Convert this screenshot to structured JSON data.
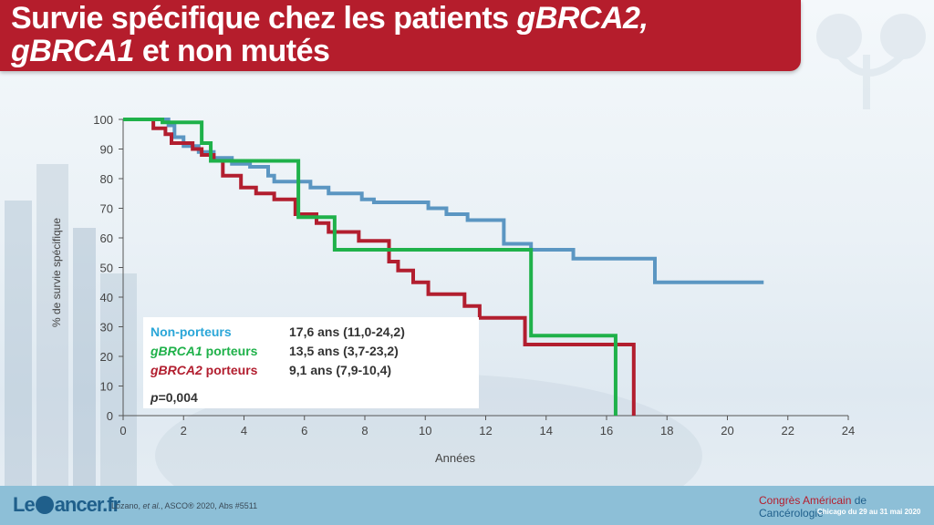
{
  "title": {
    "part1": "Survie spécifique chez les patients ",
    "part2": "gBRCA2,",
    "part3": "gBRCA1",
    "part4": " et non mutés"
  },
  "colors": {
    "brand_red": "#b51d2c",
    "non_porteurs": "#5b96c2",
    "gbrca1": "#1fb14a",
    "gbrca2": "#b21e2f"
  },
  "chart_data": {
    "type": "line",
    "xlabel": "Années",
    "ylabel": "% de survie spécifique",
    "xlim": [
      0,
      24
    ],
    "ylim": [
      0,
      100
    ],
    "xticks": [
      0,
      2,
      4,
      6,
      8,
      10,
      12,
      14,
      16,
      18,
      20,
      22,
      24
    ],
    "yticks": [
      0,
      10,
      20,
      30,
      40,
      50,
      60,
      70,
      80,
      90,
      100
    ],
    "grid": false,
    "legend_placement": "bottom-left",
    "series": [
      {
        "name": "Non-porteurs",
        "color": "#5b96c2",
        "step": true,
        "points": [
          [
            0,
            100
          ],
          [
            1.3,
            100
          ],
          [
            1.5,
            98
          ],
          [
            1.7,
            94
          ],
          [
            2,
            91
          ],
          [
            2.5,
            89
          ],
          [
            3,
            87
          ],
          [
            3.6,
            85
          ],
          [
            4.2,
            84
          ],
          [
            4.8,
            81
          ],
          [
            5.0,
            79
          ],
          [
            6.0,
            79
          ],
          [
            6.2,
            77
          ],
          [
            6.6,
            77
          ],
          [
            6.8,
            75
          ],
          [
            7.8,
            75
          ],
          [
            7.9,
            73
          ],
          [
            8.2,
            73
          ],
          [
            8.3,
            72
          ],
          [
            9.8,
            72
          ],
          [
            10.1,
            70
          ],
          [
            10.6,
            70
          ],
          [
            10.7,
            68
          ],
          [
            11.3,
            68
          ],
          [
            11.4,
            66
          ],
          [
            12.5,
            66
          ],
          [
            12.6,
            58
          ],
          [
            13.4,
            58
          ],
          [
            13.5,
            56
          ],
          [
            14.8,
            56
          ],
          [
            14.9,
            53
          ],
          [
            17.6,
            53
          ],
          [
            17.6,
            45
          ],
          [
            21.2,
            45
          ]
        ]
      },
      {
        "name": "gBRCA1 porteurs",
        "color": "#1fb14a",
        "step": true,
        "points": [
          [
            0,
            100
          ],
          [
            1.2,
            100
          ],
          [
            1.3,
            99
          ],
          [
            2.6,
            99
          ],
          [
            2.6,
            92
          ],
          [
            2.8,
            92
          ],
          [
            2.9,
            86
          ],
          [
            5.8,
            86
          ],
          [
            5.8,
            67
          ],
          [
            6.9,
            67
          ],
          [
            7.0,
            56
          ],
          [
            13.5,
            56
          ],
          [
            13.5,
            27
          ],
          [
            16.3,
            27
          ],
          [
            16.3,
            0
          ]
        ]
      },
      {
        "name": "gBRCA2 porteurs",
        "color": "#b21e2f",
        "step": true,
        "points": [
          [
            0,
            100
          ],
          [
            0.9,
            100
          ],
          [
            1.0,
            97
          ],
          [
            1.4,
            95
          ],
          [
            1.6,
            92
          ],
          [
            2.2,
            92
          ],
          [
            2.3,
            90
          ],
          [
            2.6,
            88
          ],
          [
            3.0,
            86
          ],
          [
            3.2,
            86
          ],
          [
            3.3,
            81
          ],
          [
            3.8,
            81
          ],
          [
            3.9,
            77
          ],
          [
            4.3,
            77
          ],
          [
            4.4,
            75
          ],
          [
            4.9,
            75
          ],
          [
            5.0,
            73
          ],
          [
            5.6,
            73
          ],
          [
            5.7,
            68
          ],
          [
            6.3,
            68
          ],
          [
            6.4,
            65
          ],
          [
            6.7,
            65
          ],
          [
            6.8,
            62
          ],
          [
            7.7,
            62
          ],
          [
            7.8,
            59
          ],
          [
            8.7,
            59
          ],
          [
            8.8,
            52
          ],
          [
            9.0,
            52
          ],
          [
            9.1,
            49
          ],
          [
            9.5,
            49
          ],
          [
            9.6,
            45
          ],
          [
            10.0,
            45
          ],
          [
            10.1,
            41
          ],
          [
            11.2,
            41
          ],
          [
            11.3,
            37
          ],
          [
            11.7,
            37
          ],
          [
            11.8,
            33
          ],
          [
            13.3,
            33
          ],
          [
            13.3,
            24
          ],
          [
            16.9,
            24
          ],
          [
            16.9,
            0
          ]
        ]
      }
    ]
  },
  "legend": {
    "rows": [
      {
        "name": "Non-porteurs",
        "value": "17,6 ans (11,0-24,2)",
        "color": "#2aa6d8"
      },
      {
        "name_italic": "gBRCA1",
        "name_rest": " porteurs",
        "value": "13,5 ans (3,7-23,2)",
        "color": "#1fb14a"
      },
      {
        "name_italic": "gBRCA2",
        "name_rest": " porteurs",
        "value": "9,1 ans (7,9-10,4)",
        "color": "#b21e2f"
      }
    ],
    "p_italic": "p",
    "p_rest": "=0,004"
  },
  "footer": {
    "logo_left": "Le",
    "logo_right": "ancer.fr",
    "ref_a": "Lozano, ",
    "ref_italic": "et al.",
    "ref_b": ", ASCO® 2020, Abs #5511",
    "congres_a": "Congrès Américain",
    "congres_b": " de Cancérologie",
    "congres_sub": "Chicago du 29 au 31 mai 2020"
  }
}
